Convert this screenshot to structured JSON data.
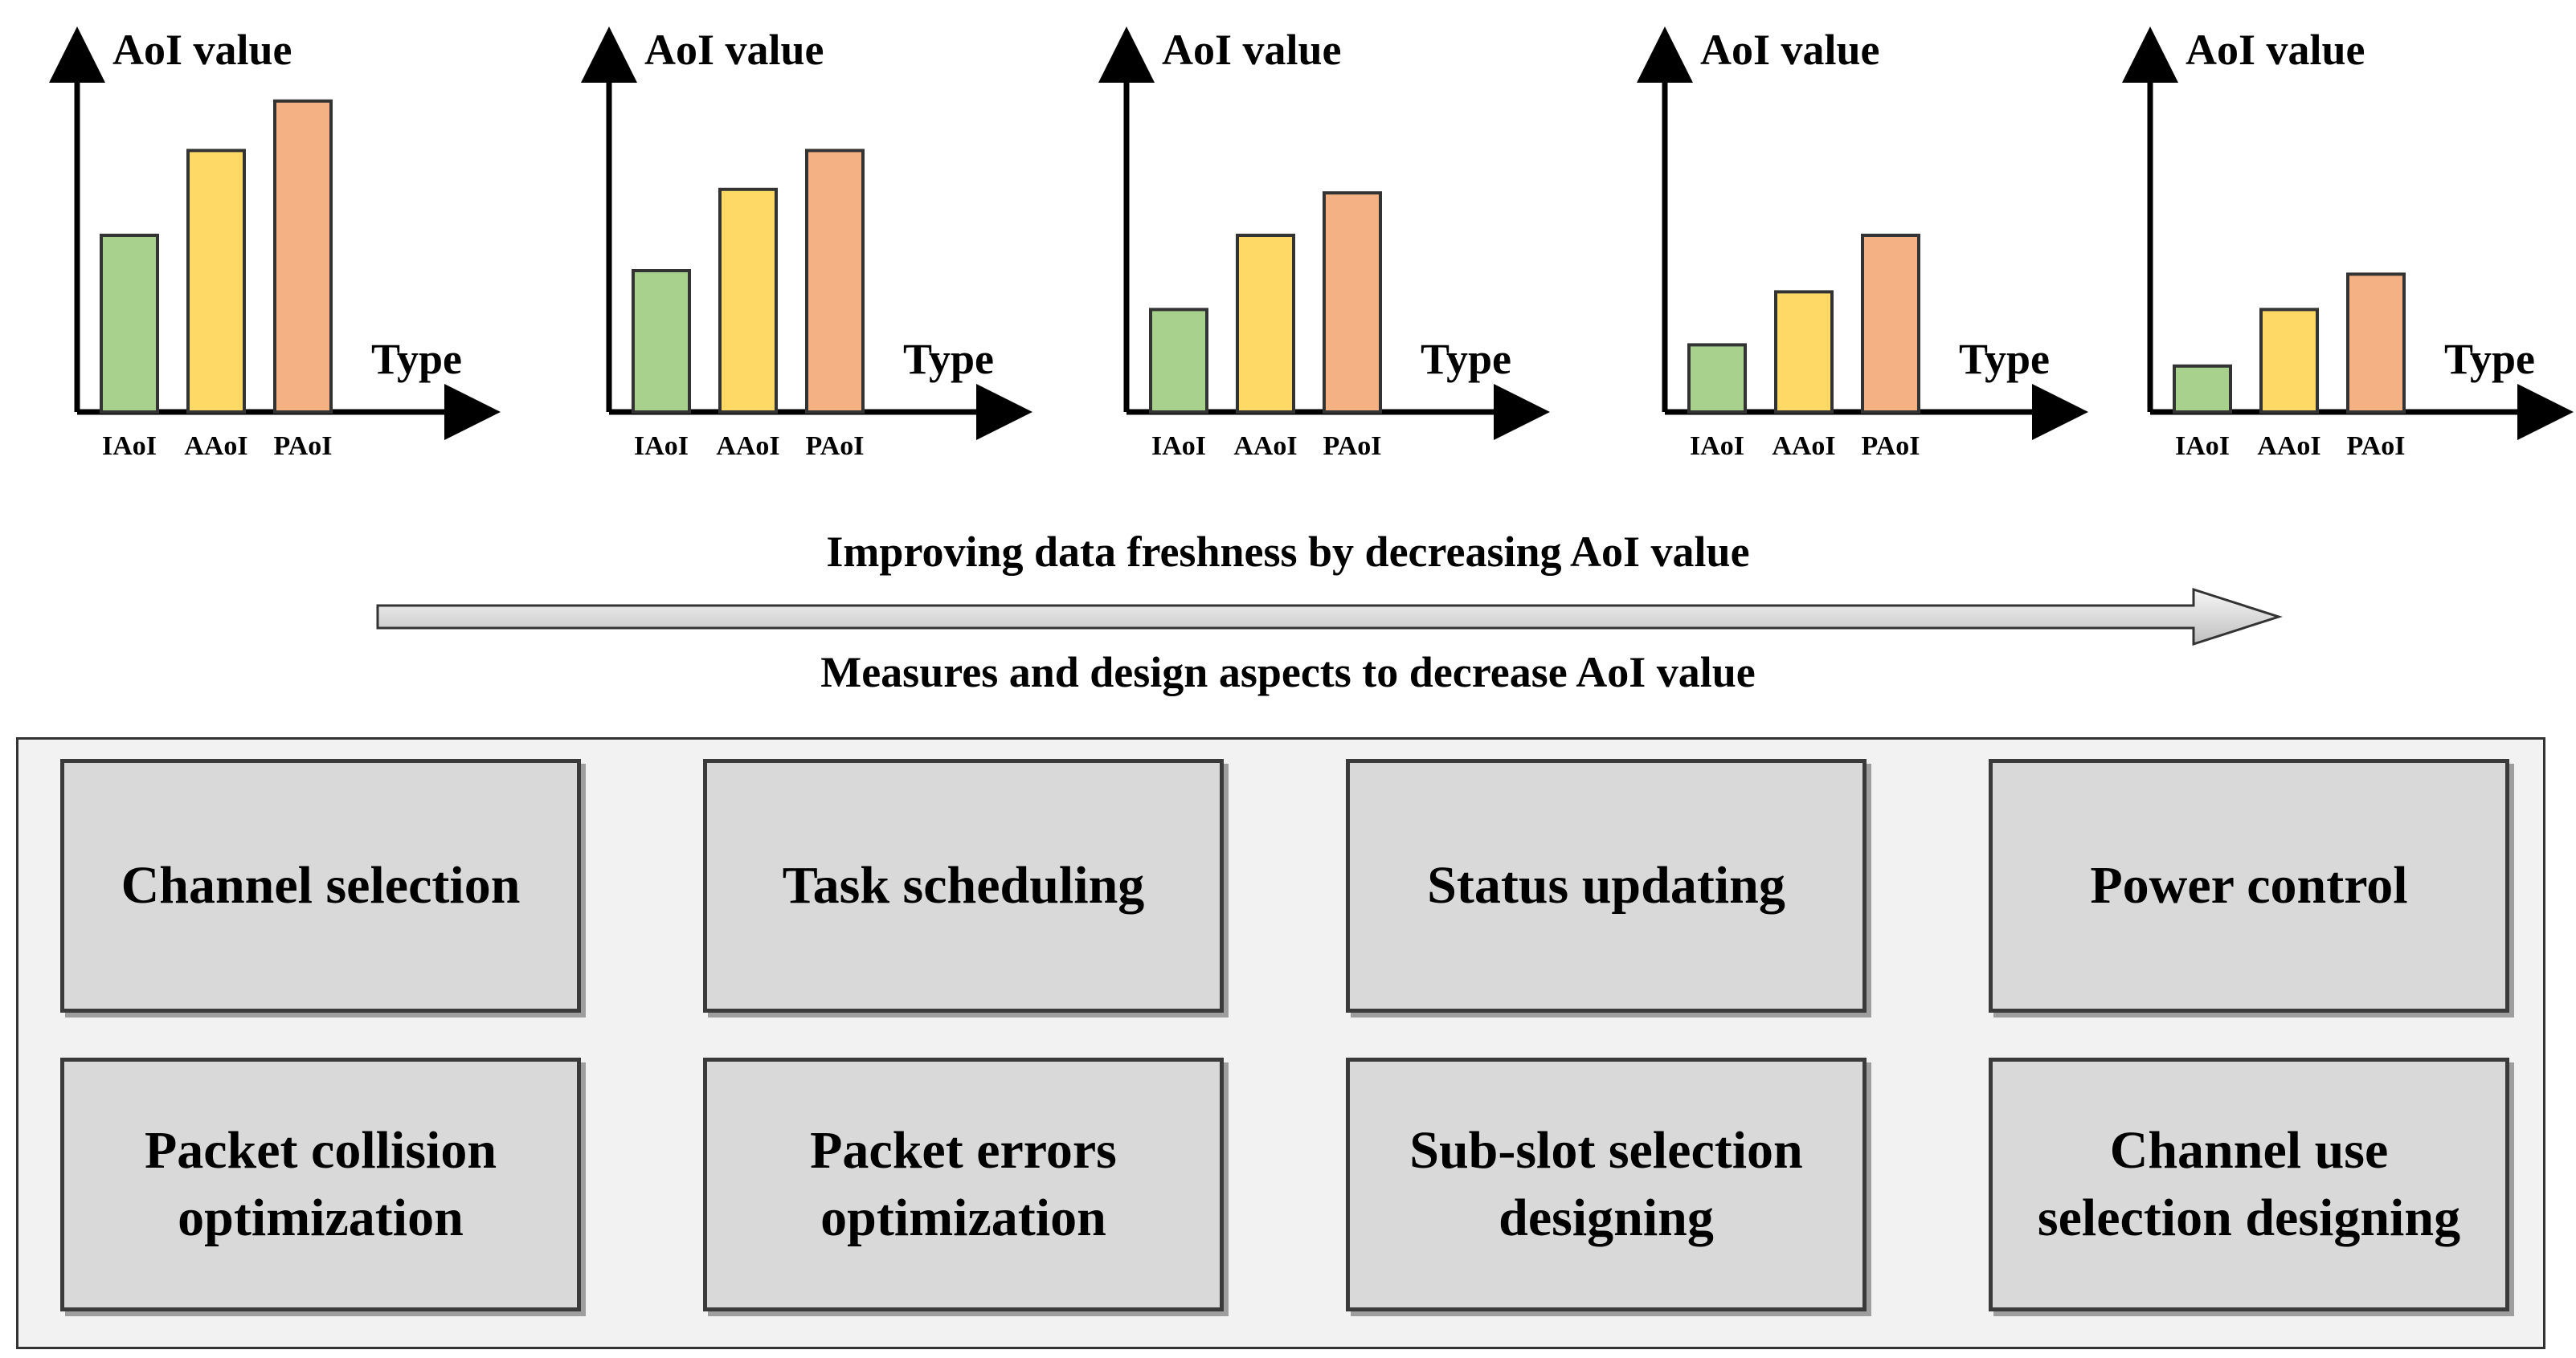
{
  "chart_data": [
    {
      "type": "bar",
      "ylabel": "AoI value",
      "xlabel": "Type",
      "categories": [
        "IAoI",
        "AAoI",
        "PAoI"
      ],
      "values": [
        50,
        74,
        88
      ],
      "ylim": [
        0,
        100
      ],
      "colors": [
        "#a9d18e",
        "#ffd966",
        "#f4b183"
      ]
    },
    {
      "type": "bar",
      "ylabel": "AoI value",
      "xlabel": "Type",
      "categories": [
        "IAoI",
        "AAoI",
        "PAoI"
      ],
      "values": [
        40,
        63,
        74
      ],
      "ylim": [
        0,
        100
      ],
      "colors": [
        "#a9d18e",
        "#ffd966",
        "#f4b183"
      ]
    },
    {
      "type": "bar",
      "ylabel": "AoI value",
      "xlabel": "Type",
      "categories": [
        "IAoI",
        "AAoI",
        "PAoI"
      ],
      "values": [
        29,
        50,
        62
      ],
      "ylim": [
        0,
        100
      ],
      "colors": [
        "#a9d18e",
        "#ffd966",
        "#f4b183"
      ]
    },
    {
      "type": "bar",
      "ylabel": "AoI value",
      "xlabel": "Type",
      "categories": [
        "IAoI",
        "AAoI",
        "PAoI"
      ],
      "values": [
        19,
        34,
        50
      ],
      "ylim": [
        0,
        100
      ],
      "colors": [
        "#a9d18e",
        "#ffd966",
        "#f4b183"
      ]
    },
    {
      "type": "bar",
      "ylabel": "AoI value",
      "xlabel": "Type",
      "categories": [
        "IAoI",
        "AAoI",
        "PAoI"
      ],
      "values": [
        13,
        29,
        39
      ],
      "ylim": [
        0,
        100
      ],
      "colors": [
        "#a9d18e",
        "#ffd966",
        "#f4b183"
      ]
    }
  ],
  "captions": {
    "top": "Improving data freshness by decreasing AoI value",
    "bottom": "Measures and design aspects to decrease AoI value"
  },
  "measures": [
    "Channel selection",
    "Task scheduling",
    "Status updating",
    "Power control",
    "Packet collision optimization",
    "Packet errors optimization",
    "Sub-slot selection designing",
    "Channel use selection designing"
  ],
  "colors": {
    "panel_background": "#f2f2f2",
    "box_fill": "#d9d9d9",
    "arrow_fill_start": "#f2f2f2",
    "arrow_fill_end": "#bfbfbf"
  }
}
